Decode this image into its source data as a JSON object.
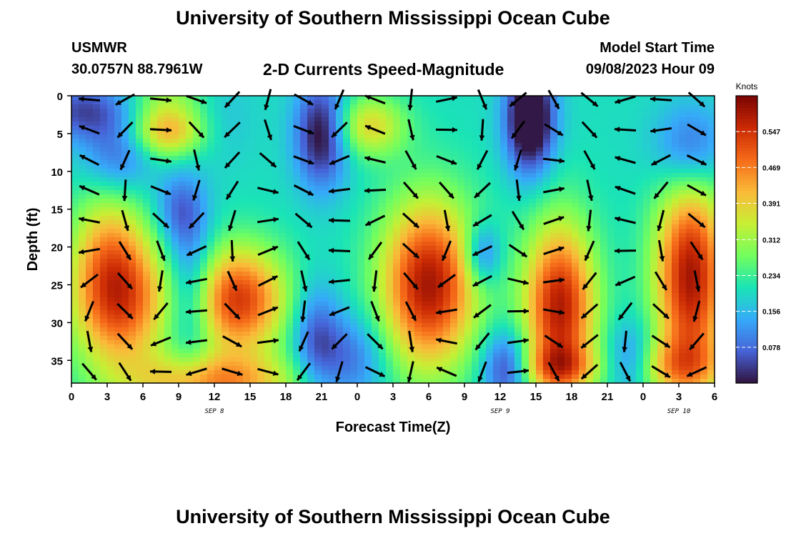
{
  "header": {
    "title": "University of Southern Mississippi Ocean Cube",
    "station": "USMWR",
    "coords": "30.0757N  88.7961W",
    "chart_title": "2-D Currents Speed-Magnitude",
    "start_label": "Model Start Time",
    "start_value": "09/08/2023 Hour 09"
  },
  "footer": {
    "title": "University of Southern Mississippi Ocean Cube"
  },
  "colors": {
    "vector": "#000000",
    "frame": "#000000",
    "scale": [
      "#30123b",
      "#4662d7",
      "#36aaf9",
      "#1ae4b6",
      "#72fe5e",
      "#c7ef34",
      "#faba39",
      "#f66b19",
      "#cb2a04",
      "#7a0403"
    ]
  },
  "chart_data": {
    "type": "heatmap",
    "xlabel": "Forecast Time(Z)",
    "ylabel": "Depth (ft)",
    "x_ticks": [
      "0",
      "3",
      "6",
      "9",
      "12",
      "15",
      "18",
      "21",
      "0",
      "3",
      "6",
      "9",
      "12",
      "15",
      "18",
      "21",
      "0",
      "3",
      "6"
    ],
    "date_labels": [
      {
        "label": "SEP 8",
        "hour": 12
      },
      {
        "label": "SEP 9",
        "hour": 36
      },
      {
        "label": "SEP 10",
        "hour": 51
      }
    ],
    "x_range_hours": [
      0,
      54
    ],
    "y_ticks": [
      0,
      5,
      10,
      15,
      20,
      25,
      30,
      35
    ],
    "y_range_ft": [
      0,
      38
    ],
    "y_inverted": true,
    "colorbar": {
      "label": "Knots",
      "range": [
        0,
        0.625
      ],
      "ticks": [
        "0.547",
        "0.469",
        "0.391",
        "0.312",
        "0.234",
        "0.156",
        "0.078"
      ]
    },
    "vectors": "2-D current direction arrows on a grid (every 3 h, ~4 ft)"
  }
}
